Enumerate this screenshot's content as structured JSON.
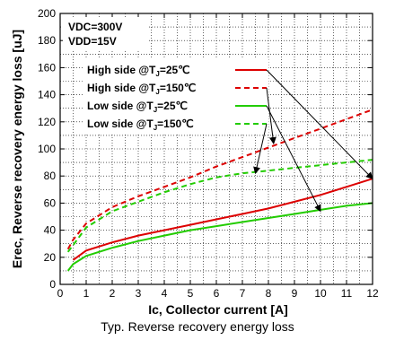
{
  "caption": "Typ. Reverse recovery energy loss",
  "chart_data": {
    "type": "line",
    "xlabel": "Ic, Collector current [A]",
    "ylabel": "Erec, Reverse recovery energy loss [uJ]",
    "xlim": [
      0,
      12
    ],
    "ylim": [
      0,
      200
    ],
    "xticks": [
      0,
      1,
      2,
      3,
      4,
      5,
      6,
      7,
      8,
      9,
      10,
      11,
      12
    ],
    "yticks": [
      0,
      20,
      40,
      60,
      80,
      100,
      120,
      140,
      160,
      180,
      200
    ],
    "grid": true,
    "conditions": [
      "VDC=300V",
      "VDD=15V"
    ],
    "legend_position": "upper-left",
    "series": [
      {
        "name": "High side @TJ=25℃",
        "name_parts": [
          "High side @T",
          "J",
          "=25℃"
        ],
        "color": "#dd0000",
        "dash": "solid",
        "x": [
          0.5,
          1,
          2,
          3,
          4,
          5,
          6,
          7,
          8,
          9,
          10,
          11,
          12
        ],
        "y": [
          18,
          25,
          31,
          36,
          40,
          44,
          48,
          52,
          56,
          61,
          66,
          72,
          78
        ]
      },
      {
        "name": "High side @TJ=150℃",
        "name_parts": [
          "High side @T",
          "J",
          "=150℃"
        ],
        "color": "#dd0000",
        "dash": "dashed",
        "x": [
          0.3,
          0.5,
          1,
          2,
          3,
          4,
          5,
          6,
          7,
          8,
          9,
          10,
          11,
          12
        ],
        "y": [
          26,
          33,
          45,
          57,
          65,
          72,
          79,
          87,
          94,
          101,
          108,
          115,
          122,
          129
        ]
      },
      {
        "name": "Low side @TJ=25℃",
        "name_parts": [
          "Low side @T",
          "J",
          "=25℃"
        ],
        "color": "#22cc00",
        "dash": "solid",
        "x": [
          0.3,
          0.5,
          1,
          2,
          3,
          4,
          5,
          6,
          7,
          8,
          9,
          10,
          11,
          12
        ],
        "y": [
          10,
          15,
          21,
          27,
          32,
          36,
          40,
          43,
          46,
          49,
          52,
          55,
          58,
          60
        ]
      },
      {
        "name": "Low side @TJ=150℃",
        "name_parts": [
          "Low side @T",
          "J",
          "=150℃"
        ],
        "color": "#22cc00",
        "dash": "dashed",
        "x": [
          0.3,
          0.5,
          1,
          2,
          3,
          4,
          5,
          6,
          7,
          8,
          9,
          10,
          11,
          12
        ],
        "y": [
          24,
          29,
          42,
          54,
          61,
          68,
          74,
          79,
          82,
          84,
          86,
          88,
          90,
          92
        ]
      }
    ]
  }
}
